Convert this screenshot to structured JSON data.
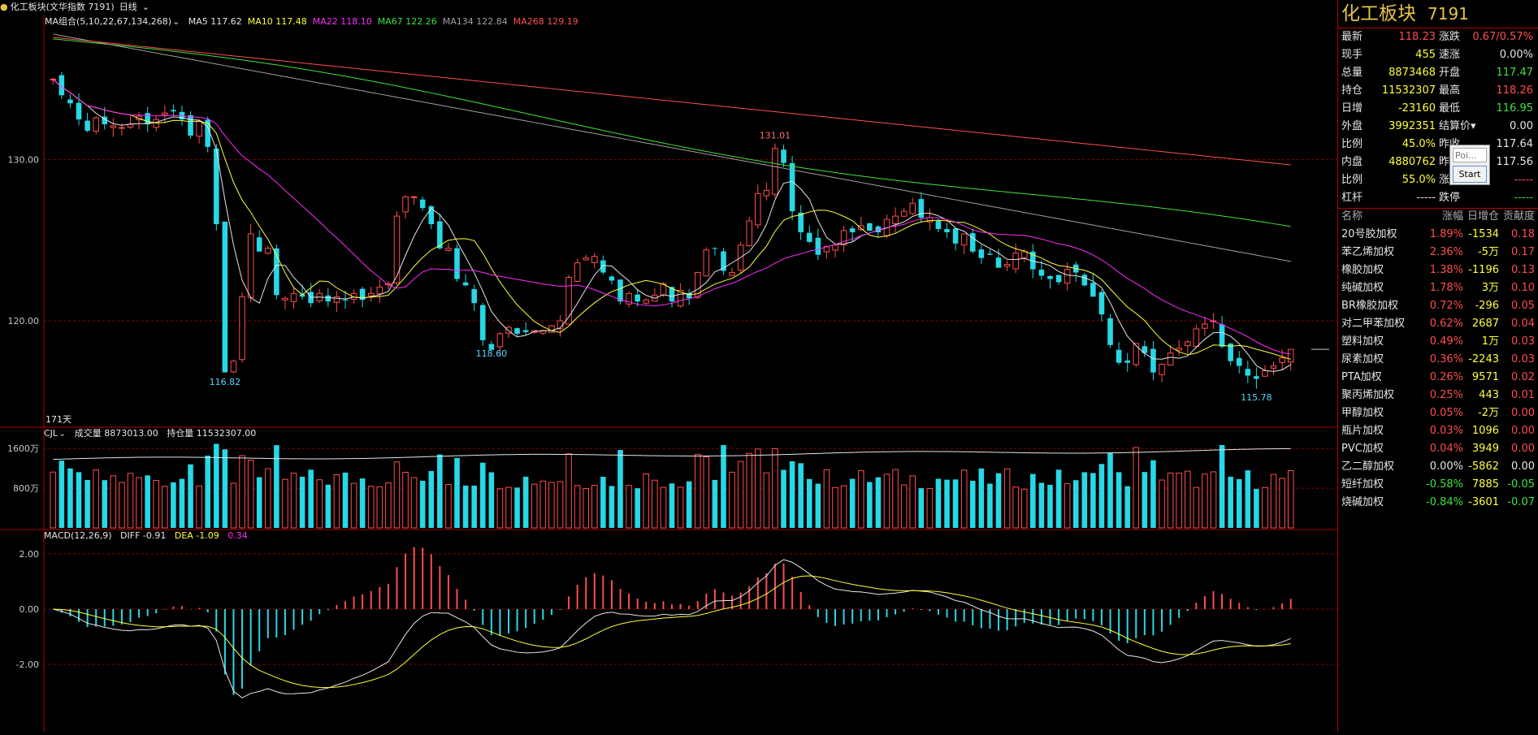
{
  "header": {
    "dot": "●",
    "title": "化工板块(文华指数 7191)",
    "period": "日线"
  },
  "ma_legend": {
    "group": "MA组合(5,10,22,67,134,268)",
    "items": [
      {
        "label": "MA5 117.62",
        "color": "#e6e6e6"
      },
      {
        "label": "MA10 117.48",
        "color": "#ffff3a"
      },
      {
        "label": "MA22 118.10",
        "color": "#ff2bff"
      },
      {
        "label": "MA67 122.26",
        "color": "#3fe23f"
      },
      {
        "label": "MA134 122.84",
        "color": "#a0a0a0"
      },
      {
        "label": "MA268 129.19",
        "color": "#ff4d4d"
      }
    ]
  },
  "vol_legend": {
    "name": "CJL",
    "vol": "成交量 8873013.00",
    "oi": "持仓量 11532307.00"
  },
  "macd_legend": {
    "name": "MACD(12,26,9)",
    "diff": "DIFF -0.91",
    "dea": "DEA -1.09",
    "macd": "0.34"
  },
  "price_axis": [
    "130.00",
    "120.00"
  ],
  "vol_axis": [
    "1600万",
    "800万"
  ],
  "macd_axis": [
    "2.00",
    "0.00",
    "-2.00"
  ],
  "annotations": {
    "high": "131.01",
    "low1": "116.82",
    "low2": "118.60",
    "low3": "115.78",
    "days": "171天"
  },
  "colors": {
    "up": "#ff4d4d",
    "down": "#27d8e6",
    "ma5": "#e6e6e6",
    "ma10": "#ffff3a",
    "ma22": "#ff2bff",
    "ma67": "#3fe23f",
    "ma134": "#a0a0a0",
    "ma268": "#ff4d4d",
    "grid": "#8b0000"
  },
  "panel": {
    "name": "化工板块",
    "code": "7191",
    "quote_rows": [
      {
        "l1": "最新",
        "v1": "118.23",
        "c1": "red",
        "l2": "涨跌",
        "v2": "0.67/0.57%",
        "c2": "red"
      },
      {
        "l1": "现手",
        "v1": "455",
        "c1": "yellow",
        "l2": "速涨",
        "v2": "0.00%",
        "c2": "white"
      },
      {
        "l1": "总量",
        "v1": "8873468",
        "c1": "yellow",
        "l2": "开盘",
        "v2": "117.47",
        "c2": "green"
      },
      {
        "l1": "持仓",
        "v1": "11532307",
        "c1": "yellow",
        "l2": "最高",
        "v2": "118.26",
        "c2": "red"
      },
      {
        "l1": "日增",
        "v1": "-23160",
        "c1": "yellow",
        "l2": "最低",
        "v2": "116.95",
        "c2": "green"
      },
      {
        "l1": "外盘",
        "v1": "3992351",
        "c1": "yellow",
        "l2": "结算价▾",
        "v2": "0.00",
        "c2": "white"
      },
      {
        "l1": "比例",
        "v1": "45.0%",
        "c1": "yellow",
        "l2": "昨收",
        "v2": "117.64",
        "c2": "white"
      },
      {
        "l1": "内盘",
        "v1": "4880762",
        "c1": "yellow",
        "l2": "昨结",
        "v2": "117.56",
        "c2": "white"
      },
      {
        "l1": "比例",
        "v1": "55.0%",
        "c1": "yellow",
        "l2": "涨停",
        "v2": "-----",
        "c2": "red"
      },
      {
        "l1": "杠杆",
        "v1": "-----",
        "c1": "white",
        "l2": "跌停",
        "v2": "-----",
        "c2": "green"
      }
    ],
    "list_headers": [
      "名称",
      "涨幅",
      "日增仓",
      "贡献度"
    ],
    "list": [
      {
        "name": "20号胶加权",
        "chg": "1.89%",
        "oi": "-1534",
        "contrib": "0.18",
        "dir": "up"
      },
      {
        "name": "苯乙烯加权",
        "chg": "2.36%",
        "oi": "-5万",
        "contrib": "0.17",
        "dir": "up"
      },
      {
        "name": "橡胶加权",
        "chg": "1.38%",
        "oi": "-1196",
        "contrib": "0.13",
        "dir": "up"
      },
      {
        "name": "纯碱加权",
        "chg": "1.78%",
        "oi": "3万",
        "contrib": "0.10",
        "dir": "up"
      },
      {
        "name": "BR橡胶加权",
        "chg": "0.72%",
        "oi": "-296",
        "contrib": "0.05",
        "dir": "up"
      },
      {
        "name": "对二甲苯加权",
        "chg": "0.62%",
        "oi": "2687",
        "contrib": "0.04",
        "dir": "up"
      },
      {
        "name": "塑料加权",
        "chg": "0.49%",
        "oi": "1万",
        "contrib": "0.03",
        "dir": "up"
      },
      {
        "name": "尿素加权",
        "chg": "0.36%",
        "oi": "-2243",
        "contrib": "0.03",
        "dir": "up"
      },
      {
        "name": "PTA加权",
        "chg": "0.26%",
        "oi": "9571",
        "contrib": "0.02",
        "dir": "up"
      },
      {
        "name": "聚丙烯加权",
        "chg": "0.25%",
        "oi": "443",
        "contrib": "0.01",
        "dir": "up"
      },
      {
        "name": "甲醇加权",
        "chg": "0.05%",
        "oi": "-2万",
        "contrib": "0.00",
        "dir": "up"
      },
      {
        "name": "瓶片加权",
        "chg": "0.03%",
        "oi": "1096",
        "contrib": "0.00",
        "dir": "up"
      },
      {
        "name": "PVC加权",
        "chg": "0.04%",
        "oi": "3949",
        "contrib": "0.00",
        "dir": "up"
      },
      {
        "name": "乙二醇加权",
        "chg": "0.00%",
        "oi": "-5862",
        "contrib": "0.00",
        "dir": "flat"
      },
      {
        "name": "短纤加权",
        "chg": "-0.58%",
        "oi": "7885",
        "contrib": "-0.05",
        "dir": "down"
      },
      {
        "name": "烧碱加权",
        "chg": "-0.84%",
        "oi": "-3601",
        "contrib": "-0.07",
        "dir": "down"
      }
    ]
  },
  "popup": {
    "input_placeholder": "Poi...",
    "button": "Start"
  },
  "chart_data": {
    "type": "line",
    "title": "化工板块(文华指数 7191) 日线",
    "price_ylim": [
      113.5,
      138.2
    ],
    "close": [
      135,
      134,
      133.5,
      132.5,
      131.8,
      132.6,
      132.2,
      132.1,
      132,
      132.2,
      132.7,
      132.2,
      132.5,
      132.9,
      133,
      132.5,
      131.5,
      132.4,
      130.8,
      126,
      116.8,
      117.5,
      121.5,
      125.4,
      124.3,
      124.5,
      121.6,
      121.4,
      121.7,
      121.5,
      121.1,
      121.7,
      121.2,
      121.5,
      121.3,
      121.7,
      121.3,
      121.7,
      122.1,
      122.3,
      126.5,
      127.7,
      127.7,
      127,
      126,
      124.5,
      124.5,
      122.6,
      122.2,
      121.1,
      118.8,
      118.2,
      119.2,
      119.6,
      119.2,
      119.3,
      119.4,
      119.4,
      119.7,
      120,
      122.7,
      123.6,
      123.9,
      124,
      123,
      122.5,
      121.2,
      121.7,
      121.2,
      121.3,
      121.6,
      122.3,
      121.2,
      121.9,
      121.4,
      123,
      124.4,
      124.5,
      123.1,
      123,
      124.7,
      126.2,
      127.9,
      128.1,
      130.7,
      129.8,
      126.8,
      125.5,
      124.9,
      124.1,
      124.6,
      124.7,
      125.6,
      125.5,
      125.9,
      125.6,
      125.5,
      126.3,
      126.5,
      126.8,
      127.3,
      126.4,
      126.4,
      125.7,
      125.5,
      124.8,
      125.4,
      124.3,
      123.9,
      124.1,
      123.3,
      123.5,
      124.2,
      124.3,
      123.2,
      122.8,
      122.6,
      122.4,
      123.2,
      123,
      122.2,
      121.5,
      120.4,
      118.5,
      117.4,
      117.4,
      118.6,
      118,
      116.8,
      117.3,
      118,
      118.3,
      118.7,
      119.5,
      119.8,
      120,
      118.4,
      117.5,
      117.2,
      116.6,
      116.4,
      116.9,
      117.2,
      117.7,
      118.23
    ],
    "volume_axis": [
      "1600万",
      "800万"
    ],
    "macd_axis": [
      2.0,
      0.0,
      -2.0
    ],
    "labels": {
      "high": 131.01,
      "lows": [
        116.82,
        118.6,
        115.78
      ]
    }
  }
}
